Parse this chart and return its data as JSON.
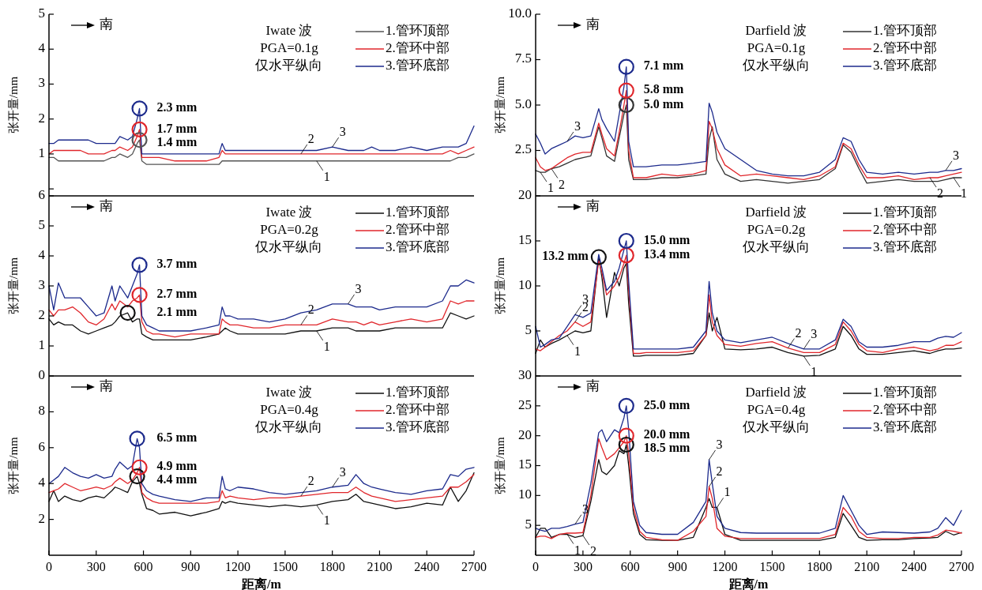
{
  "chart_data": [
    {
      "type": "line",
      "ylabel": "张开量/mm",
      "xlim": [
        0,
        2700
      ],
      "ylim": [
        -0.2,
        5
      ],
      "yticks": [
        {
          "value": 0,
          "label": null
        },
        1,
        2,
        3,
        4,
        5
      ],
      "tick_labels": "y",
      "legend": "top right",
      "x": [
        0,
        30,
        60,
        100,
        150,
        200,
        250,
        300,
        350,
        400,
        420,
        450,
        500,
        530,
        560,
        575,
        590,
        620,
        660,
        700,
        800,
        900,
        1000,
        1080,
        1100,
        1120,
        1150,
        1200,
        1300,
        1400,
        1500,
        1600,
        1700,
        1800,
        1900,
        1950,
        2000,
        2050,
        2100,
        2200,
        2300,
        2400,
        2500,
        2550,
        2600,
        2650,
        2700
      ],
      "series": [
        {
          "name": "1.管环顶部",
          "color": "#555555",
          "values": [
            0.9,
            0.9,
            0.8,
            0.8,
            0.8,
            0.8,
            0.8,
            0.8,
            0.8,
            0.9,
            0.9,
            1.0,
            0.9,
            1.0,
            1.3,
            1.4,
            0.8,
            0.7,
            0.7,
            0.7,
            0.7,
            0.7,
            0.7,
            0.7,
            0.8,
            0.8,
            0.8,
            0.8,
            0.8,
            0.8,
            0.8,
            0.8,
            0.8,
            0.8,
            0.8,
            0.8,
            0.8,
            0.8,
            0.8,
            0.8,
            0.8,
            0.8,
            0.8,
            0.8,
            0.9,
            0.9,
            1.0
          ]
        },
        {
          "name": "2.管环中部",
          "color": "#e0262b",
          "values": [
            1.0,
            1.1,
            1.1,
            1.1,
            1.1,
            1.1,
            1.0,
            1.0,
            1.0,
            1.1,
            1.1,
            1.2,
            1.1,
            1.2,
            1.5,
            1.7,
            0.9,
            0.9,
            0.9,
            0.9,
            0.8,
            0.8,
            0.8,
            0.9,
            1.1,
            1.0,
            1.0,
            1.0,
            1.0,
            1.0,
            1.0,
            1.0,
            1.0,
            1.0,
            1.0,
            1.0,
            1.0,
            1.0,
            1.0,
            1.0,
            1.0,
            1.0,
            1.0,
            1.1,
            1.0,
            1.1,
            1.2
          ]
        },
        {
          "name": "3.管环底部",
          "color": "#1c2a8c",
          "values": [
            1.3,
            1.3,
            1.4,
            1.4,
            1.4,
            1.4,
            1.4,
            1.3,
            1.3,
            1.3,
            1.3,
            1.5,
            1.4,
            1.5,
            2.0,
            2.3,
            1.0,
            1.0,
            1.0,
            1.0,
            1.0,
            1.0,
            1.0,
            1.0,
            1.3,
            1.1,
            1.1,
            1.1,
            1.1,
            1.1,
            1.1,
            1.1,
            1.1,
            1.2,
            1.1,
            1.1,
            1.1,
            1.2,
            1.1,
            1.1,
            1.2,
            1.1,
            1.2,
            1.2,
            1.2,
            1.3,
            1.8
          ]
        }
      ],
      "annotations": [
        "南",
        "Iwate 波",
        "PGA=0.1g",
        "仅水平纵向",
        {
          "text": "1.4 mm",
          "x": 575,
          "y": 1.4
        },
        {
          "text": "1.7 mm",
          "x": 575,
          "y": 1.7
        },
        {
          "text": "2.3 mm",
          "x": 575,
          "y": 2.3
        },
        {
          "text": "1",
          "x": 1700,
          "y": 0.8
        },
        {
          "text": "2",
          "x": 1600,
          "y": 1.0
        },
        {
          "text": "3",
          "x": 1800,
          "y": 1.2
        }
      ]
    },
    {
      "type": "line",
      "ylabel": "张开量/mm",
      "xlim": [
        0,
        2700
      ],
      "ylim": [
        0,
        10
      ],
      "yticks": [
        {
          "value": 2.5,
          "label": "2.5"
        },
        {
          "value": 5,
          "label": "5.0"
        },
        {
          "value": 7.5,
          "label": "7.5"
        },
        {
          "value": 10,
          "label": "10.0"
        }
      ],
      "tick_labels": "y",
      "legend": "top right",
      "x": [
        0,
        30,
        60,
        100,
        150,
        200,
        250,
        300,
        350,
        400,
        420,
        450,
        500,
        530,
        560,
        575,
        590,
        620,
        660,
        700,
        800,
        900,
        1000,
        1080,
        1100,
        1120,
        1150,
        1200,
        1300,
        1400,
        1500,
        1600,
        1700,
        1800,
        1900,
        1950,
        2000,
        2050,
        2100,
        2200,
        2300,
        2400,
        2500,
        2550,
        2600,
        2650,
        2700
      ],
      "series": [
        {
          "name": "1.管环顶部",
          "color": "#333333",
          "values": [
            1.4,
            1.3,
            1.3,
            1.5,
            1.6,
            1.8,
            2.0,
            2.1,
            2.2,
            3.8,
            3.2,
            2.2,
            1.9,
            3.2,
            4.5,
            5.0,
            2.0,
            0.9,
            0.9,
            0.9,
            1.0,
            1.0,
            1.1,
            1.2,
            3.1,
            3.8,
            2.0,
            1.2,
            0.8,
            0.9,
            0.8,
            0.7,
            0.8,
            0.9,
            1.5,
            2.8,
            2.4,
            1.5,
            0.7,
            0.8,
            0.9,
            0.8,
            0.8,
            0.8,
            0.9,
            1.0,
            1.0
          ]
        },
        {
          "name": "2.管环中部",
          "color": "#e0262b",
          "values": [
            2.1,
            1.6,
            1.4,
            1.5,
            1.8,
            2.1,
            2.3,
            2.4,
            2.4,
            4.0,
            3.4,
            2.6,
            2.2,
            3.5,
            5.0,
            5.8,
            2.5,
            1.0,
            1.0,
            1.0,
            1.2,
            1.1,
            1.2,
            1.4,
            4.1,
            3.7,
            2.6,
            1.7,
            1.1,
            1.2,
            1.1,
            1.0,
            0.9,
            1.1,
            1.6,
            2.9,
            2.6,
            1.7,
            1.0,
            1.0,
            1.1,
            0.9,
            1.0,
            1.0,
            1.1,
            1.2,
            1.3
          ]
        },
        {
          "name": "3.管环底部",
          "color": "#1c2a8c",
          "values": [
            3.4,
            2.9,
            2.3,
            2.6,
            2.8,
            3.0,
            3.3,
            3.2,
            3.3,
            4.8,
            4.2,
            3.7,
            3.0,
            4.5,
            6.0,
            7.1,
            3.0,
            1.6,
            1.6,
            1.6,
            1.7,
            1.7,
            1.8,
            1.9,
            5.1,
            4.6,
            3.5,
            2.6,
            2.0,
            1.4,
            1.2,
            1.1,
            1.1,
            1.3,
            2.0,
            3.2,
            3.0,
            2.0,
            1.3,
            1.2,
            1.3,
            1.2,
            1.3,
            1.3,
            1.4,
            1.4,
            1.5
          ]
        }
      ],
      "annotations": [
        "南",
        "Darfield 波",
        "PGA=0.1g",
        "仅水平纵向",
        {
          "text": "5.0 mm",
          "x": 575,
          "y": 5.0
        },
        {
          "text": "5.8 mm",
          "x": 575,
          "y": 5.8
        },
        {
          "text": "7.1 mm",
          "x": 575,
          "y": 7.1
        },
        {
          "text": "1",
          "x": 30,
          "y": 1.3
        },
        {
          "text": "2",
          "x": 100,
          "y": 1.5
        },
        {
          "text": "3",
          "x": 200,
          "y": 3.0
        },
        {
          "text": "1",
          "x": 2650,
          "y": 1.0
        },
        {
          "text": "2",
          "x": 2500,
          "y": 1.0
        },
        {
          "text": "3",
          "x": 2600,
          "y": 1.4
        }
      ]
    },
    {
      "type": "line",
      "ylabel": "张开量/mm",
      "xlim": [
        0,
        2700
      ],
      "ylim": [
        0,
        6
      ],
      "yticks": [
        0,
        1,
        2,
        3,
        4,
        5,
        6
      ],
      "tick_labels": "y",
      "legend": "top right",
      "x": [
        0,
        30,
        60,
        100,
        150,
        200,
        250,
        300,
        350,
        400,
        420,
        450,
        500,
        530,
        560,
        575,
        590,
        620,
        660,
        700,
        800,
        900,
        1000,
        1080,
        1100,
        1120,
        1150,
        1200,
        1300,
        1400,
        1500,
        1600,
        1700,
        1800,
        1900,
        1950,
        2000,
        2050,
        2100,
        2200,
        2300,
        2400,
        2500,
        2550,
        2600,
        2650,
        2700
      ],
      "series": [
        {
          "name": "1.管环顶部",
          "color": "#111111",
          "values": [
            1.9,
            1.7,
            1.8,
            1.7,
            1.7,
            1.5,
            1.4,
            1.5,
            1.6,
            1.7,
            1.8,
            2.0,
            2.1,
            1.8,
            1.9,
            1.9,
            1.4,
            1.3,
            1.2,
            1.2,
            1.2,
            1.2,
            1.3,
            1.4,
            1.5,
            1.6,
            1.5,
            1.4,
            1.4,
            1.4,
            1.4,
            1.5,
            1.5,
            1.6,
            1.6,
            1.5,
            1.5,
            1.5,
            1.5,
            1.6,
            1.6,
            1.6,
            1.6,
            2.1,
            2.0,
            1.9,
            2.0
          ]
        },
        {
          "name": "2.管环中部",
          "color": "#e0262b",
          "values": [
            2.2,
            2.0,
            2.2,
            2.2,
            2.3,
            2.1,
            1.8,
            1.7,
            1.9,
            2.4,
            2.2,
            2.5,
            2.3,
            2.5,
            2.6,
            2.7,
            1.8,
            1.5,
            1.4,
            1.4,
            1.3,
            1.4,
            1.4,
            1.4,
            1.9,
            1.8,
            1.7,
            1.7,
            1.6,
            1.6,
            1.7,
            1.7,
            1.7,
            1.9,
            1.8,
            1.8,
            1.7,
            1.8,
            1.7,
            1.8,
            1.9,
            1.8,
            1.9,
            2.5,
            2.4,
            2.5,
            2.5
          ]
        },
        {
          "name": "3.管环底部",
          "color": "#1c2a8c",
          "values": [
            3.0,
            2.2,
            3.1,
            2.6,
            2.6,
            2.6,
            2.3,
            2.0,
            2.1,
            3.0,
            2.5,
            3.0,
            2.6,
            3.0,
            3.4,
            3.7,
            2.0,
            1.7,
            1.6,
            1.5,
            1.5,
            1.5,
            1.6,
            1.7,
            2.3,
            2.0,
            2.0,
            1.9,
            1.9,
            1.8,
            1.9,
            2.1,
            2.2,
            2.4,
            2.4,
            2.3,
            2.3,
            2.3,
            2.2,
            2.3,
            2.3,
            2.3,
            2.5,
            3.0,
            3.0,
            3.2,
            3.1
          ]
        }
      ],
      "annotations": [
        "南",
        "Iwate 波",
        "PGA=0.2g",
        "仅水平纵向",
        {
          "text": "2.1 mm",
          "x": 500,
          "y": 2.1
        },
        {
          "text": "2.7 mm",
          "x": 575,
          "y": 2.7
        },
        {
          "text": "3.7 mm",
          "x": 575,
          "y": 3.7
        },
        {
          "text": "1",
          "x": 1700,
          "y": 1.5
        },
        {
          "text": "2",
          "x": 1600,
          "y": 1.7
        },
        {
          "text": "3",
          "x": 1900,
          "y": 2.4
        }
      ]
    },
    {
      "type": "line",
      "ylabel": "张开量/mm",
      "xlim": [
        0,
        2700
      ],
      "ylim": [
        0,
        20
      ],
      "yticks": [
        5,
        10,
        15,
        20
      ],
      "tick_labels": "y",
      "legend": "top right",
      "x": [
        0,
        30,
        60,
        100,
        150,
        200,
        250,
        300,
        350,
        400,
        420,
        450,
        500,
        530,
        560,
        575,
        590,
        620,
        660,
        700,
        800,
        900,
        1000,
        1080,
        1100,
        1120,
        1150,
        1200,
        1300,
        1400,
        1500,
        1600,
        1700,
        1800,
        1900,
        1950,
        2000,
        2050,
        2100,
        2200,
        2300,
        2400,
        2500,
        2550,
        2600,
        2650,
        2700
      ],
      "series": [
        {
          "name": "1.管环顶部",
          "color": "#111111",
          "values": [
            2.5,
            4.0,
            3.2,
            3.6,
            4.0,
            4.5,
            5.0,
            4.8,
            5.0,
            13.2,
            11.0,
            6.5,
            11.5,
            10.0,
            12.0,
            12.5,
            8.0,
            2.2,
            2.2,
            2.3,
            2.3,
            2.3,
            2.5,
            4.5,
            7.0,
            5.0,
            6.5,
            3.0,
            2.9,
            3.0,
            3.2,
            2.6,
            2.2,
            2.3,
            3.0,
            5.5,
            4.5,
            3.0,
            2.4,
            2.4,
            2.6,
            2.8,
            2.5,
            2.8,
            3.0,
            3.0,
            3.1
          ]
        },
        {
          "name": "2.管环中部",
          "color": "#e0262b",
          "values": [
            3.0,
            2.8,
            3.2,
            3.8,
            4.5,
            5.0,
            6.0,
            5.5,
            6.0,
            12.8,
            11.5,
            9.0,
            10.0,
            11.0,
            12.5,
            13.4,
            9.5,
            2.5,
            2.5,
            2.6,
            2.6,
            2.6,
            2.8,
            4.5,
            9.0,
            6.0,
            4.5,
            3.5,
            3.3,
            3.6,
            3.8,
            3.1,
            2.6,
            2.6,
            3.5,
            6.0,
            5.0,
            3.5,
            2.8,
            2.6,
            3.0,
            3.2,
            2.8,
            3.0,
            3.4,
            3.4,
            3.8
          ]
        },
        {
          "name": "3.管环底部",
          "color": "#1c2a8c",
          "values": [
            5.5,
            3.2,
            3.5,
            4.0,
            4.2,
            5.5,
            6.8,
            6.5,
            7.0,
            13.5,
            12.0,
            9.5,
            10.5,
            12.0,
            14.0,
            15.0,
            10.5,
            3.0,
            3.0,
            3.0,
            3.0,
            3.0,
            3.2,
            5.0,
            10.5,
            7.0,
            5.0,
            4.0,
            3.7,
            4.0,
            4.3,
            3.6,
            3.0,
            3.0,
            4.0,
            6.3,
            5.5,
            3.8,
            3.2,
            3.2,
            3.4,
            3.8,
            3.8,
            4.2,
            4.4,
            4.3,
            4.8
          ]
        }
      ],
      "annotations": [
        "南",
        "Darfield 波",
        "PGA=0.2g",
        "仅水平纵向",
        {
          "text": "13.2 mm",
          "x": 400,
          "y": 13.2
        },
        {
          "text": "13.4 mm",
          "x": 575,
          "y": 13.4
        },
        {
          "text": "15.0 mm",
          "x": 575,
          "y": 15.0
        },
        {
          "text": "1",
          "x": 200,
          "y": 4.5
        },
        {
          "text": "2",
          "x": 250,
          "y": 6.0
        },
        {
          "text": "3",
          "x": 250,
          "y": 6.8
        },
        {
          "text": "1",
          "x": 1700,
          "y": 2.2
        },
        {
          "text": "2",
          "x": 1600,
          "y": 3.1
        },
        {
          "text": "3",
          "x": 1700,
          "y": 3.0
        }
      ]
    },
    {
      "type": "line",
      "ylabel": "张开量/mm",
      "xlabel": "距离/m",
      "xlim": [
        0,
        2700
      ],
      "xticks": [
        0,
        300,
        600,
        900,
        1200,
        1500,
        1800,
        2100,
        2400,
        2700
      ],
      "ylim": [
        0,
        10
      ],
      "yticks": [
        2,
        4,
        6,
        8
      ],
      "legend": "top right",
      "x": [
        0,
        30,
        60,
        100,
        150,
        200,
        250,
        300,
        350,
        400,
        420,
        450,
        500,
        530,
        560,
        575,
        590,
        620,
        660,
        700,
        800,
        900,
        1000,
        1080,
        1100,
        1120,
        1150,
        1200,
        1300,
        1400,
        1500,
        1600,
        1700,
        1800,
        1900,
        1950,
        2000,
        2050,
        2100,
        2200,
        2300,
        2400,
        2500,
        2550,
        2600,
        2650,
        2700
      ],
      "series": [
        {
          "name": "1.管环顶部",
          "color": "#111111",
          "values": [
            3.0,
            3.6,
            3.0,
            3.3,
            3.1,
            3.0,
            3.2,
            3.3,
            3.2,
            3.6,
            3.8,
            3.7,
            3.5,
            4.1,
            4.4,
            4.0,
            3.4,
            2.6,
            2.5,
            2.3,
            2.4,
            2.2,
            2.4,
            2.6,
            3.0,
            2.9,
            3.0,
            2.9,
            2.8,
            2.7,
            2.8,
            2.7,
            2.8,
            3.0,
            3.1,
            3.4,
            3.0,
            2.9,
            2.8,
            2.6,
            2.7,
            2.9,
            2.8,
            3.8,
            3.0,
            3.6,
            4.6
          ]
        },
        {
          "name": "2.管环中部",
          "color": "#e0262b",
          "values": [
            3.5,
            3.6,
            3.7,
            4.0,
            3.8,
            3.6,
            3.7,
            3.8,
            3.7,
            3.9,
            4.1,
            4.3,
            4.0,
            4.2,
            4.6,
            4.9,
            3.5,
            3.2,
            3.0,
            2.9,
            2.9,
            2.9,
            2.9,
            3.0,
            3.6,
            3.2,
            3.3,
            3.2,
            3.1,
            3.2,
            3.2,
            3.3,
            3.4,
            3.5,
            3.5,
            3.8,
            3.5,
            3.3,
            3.2,
            3.0,
            3.1,
            3.2,
            3.3,
            3.8,
            3.8,
            4.1,
            4.5
          ]
        },
        {
          "name": "3.管环底部",
          "color": "#1c2a8c",
          "values": [
            4.0,
            4.2,
            4.4,
            4.9,
            4.6,
            4.4,
            4.3,
            4.5,
            4.3,
            4.4,
            4.8,
            5.2,
            4.8,
            5.0,
            6.5,
            6.0,
            4.0,
            3.6,
            3.4,
            3.3,
            3.1,
            3.0,
            3.2,
            3.2,
            4.4,
            3.7,
            3.6,
            3.8,
            3.7,
            3.5,
            3.4,
            3.5,
            3.6,
            3.8,
            3.9,
            4.5,
            4.0,
            3.8,
            3.7,
            3.5,
            3.4,
            3.6,
            3.7,
            4.5,
            4.4,
            4.8,
            4.9
          ]
        }
      ],
      "annotations": [
        "南",
        "Iwate 波",
        "PGA=0.4g",
        "仅水平纵向",
        {
          "text": "4.4 mm",
          "x": 560,
          "y": 4.4
        },
        {
          "text": "4.9 mm",
          "x": 575,
          "y": 4.9
        },
        {
          "text": "6.5 mm",
          "x": 560,
          "y": 6.5
        },
        {
          "text": "1",
          "x": 1700,
          "y": 2.8
        },
        {
          "text": "2",
          "x": 1600,
          "y": 3.3
        },
        {
          "text": "3",
          "x": 1800,
          "y": 3.8
        }
      ]
    },
    {
      "type": "line",
      "ylabel": "张开量/mm",
      "xlabel": "距离/m",
      "xlim": [
        0,
        2700
      ],
      "xticks": [
        0,
        300,
        600,
        900,
        1200,
        1500,
        1800,
        2100,
        2400,
        2700
      ],
      "ylim": [
        0,
        30
      ],
      "yticks": [
        5,
        10,
        15,
        20,
        25,
        30
      ],
      "legend": "top right",
      "x": [
        0,
        30,
        60,
        100,
        150,
        200,
        250,
        300,
        350,
        400,
        420,
        450,
        500,
        530,
        560,
        575,
        590,
        620,
        660,
        700,
        800,
        900,
        1000,
        1080,
        1100,
        1120,
        1150,
        1200,
        1300,
        1400,
        1500,
        1600,
        1700,
        1800,
        1900,
        1950,
        2000,
        2050,
        2100,
        2200,
        2300,
        2400,
        2500,
        2550,
        2600,
        2650,
        2700
      ],
      "series": [
        {
          "name": "1.管环顶部",
          "color": "#111111",
          "values": [
            3.0,
            4.5,
            4.5,
            3.0,
            3.5,
            3.5,
            3.0,
            3.3,
            9.0,
            16.0,
            14.0,
            13.5,
            15.0,
            17.5,
            17.0,
            18.5,
            15.0,
            7.0,
            3.5,
            2.6,
            2.5,
            2.5,
            3.0,
            8.0,
            9.5,
            8.0,
            8.0,
            3.5,
            2.5,
            2.5,
            2.5,
            2.5,
            2.5,
            2.5,
            3.0,
            7.0,
            5.0,
            3.0,
            2.5,
            2.6,
            2.6,
            2.8,
            2.9,
            3.0,
            4.0,
            3.4,
            3.8
          ]
        },
        {
          "name": "2.管环中部",
          "color": "#e0262b",
          "values": [
            3.0,
            3.2,
            3.2,
            2.8,
            3.5,
            3.7,
            3.7,
            3.8,
            10.0,
            19.5,
            18.0,
            16.0,
            17.0,
            18.0,
            19.0,
            20.0,
            17.0,
            8.0,
            4.0,
            3.0,
            2.6,
            2.5,
            4.0,
            6.5,
            11.5,
            9.5,
            4.5,
            3.2,
            2.8,
            2.8,
            2.8,
            2.8,
            2.8,
            2.8,
            3.5,
            8.0,
            6.5,
            4.0,
            3.0,
            2.8,
            2.8,
            3.0,
            3.0,
            3.4,
            4.2,
            4.0,
            3.7
          ]
        },
        {
          "name": "3.管环底部",
          "color": "#1c2a8c",
          "values": [
            4.5,
            4.2,
            4.0,
            4.5,
            4.5,
            4.8,
            5.2,
            5.5,
            12.0,
            20.5,
            21.0,
            19.0,
            21.0,
            20.5,
            23.0,
            25.0,
            21.0,
            9.0,
            5.0,
            3.8,
            3.5,
            3.5,
            5.5,
            9.0,
            16.0,
            12.0,
            6.5,
            4.5,
            3.8,
            3.7,
            3.7,
            3.7,
            3.7,
            3.7,
            4.5,
            10.0,
            7.5,
            5.0,
            3.5,
            3.9,
            3.8,
            3.7,
            3.9,
            4.5,
            6.3,
            5.0,
            7.5
          ]
        }
      ],
      "annotations": [
        "南",
        "Darfield 波",
        "PGA=0.4g",
        "仅水平纵向",
        {
          "text": "18.5 mm",
          "x": 575,
          "y": 18.5
        },
        {
          "text": "20.0 mm",
          "x": 575,
          "y": 20.0
        },
        {
          "text": "25.0 mm",
          "x": 575,
          "y": 25.0
        },
        {
          "text": "1",
          "x": 200,
          "y": 3.5
        },
        {
          "text": "2",
          "x": 300,
          "y": 3.3
        },
        {
          "text": "3",
          "x": 250,
          "y": 5.2
        },
        {
          "text": "1",
          "x": 1150,
          "y": 8.0
        },
        {
          "text": "2",
          "x": 1100,
          "y": 11.5
        },
        {
          "text": "3",
          "x": 1100,
          "y": 16.0
        }
      ]
    }
  ]
}
